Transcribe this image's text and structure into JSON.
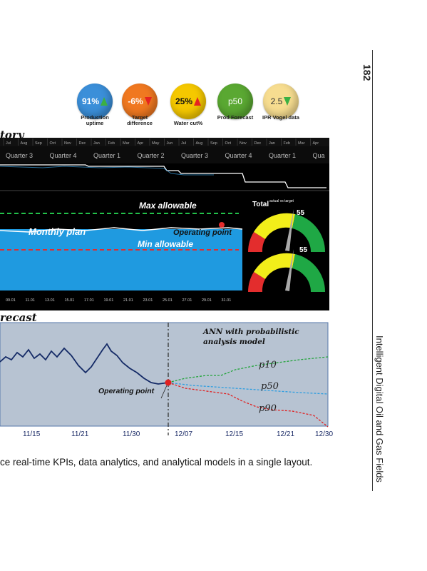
{
  "kpis": [
    {
      "value": "91%",
      "label": "Production uptime",
      "color": "#3b8fd9",
      "arrow": "up-g"
    },
    {
      "value": "-6%",
      "label": "Target difference",
      "color": "#f07820",
      "arrow": "down-r"
    },
    {
      "value": "25%",
      "label": "Water cut%",
      "color": "#f5c800",
      "arrow": "up-r"
    },
    {
      "value": "p50",
      "label": "Prod Forecast",
      "color": "#5aa832",
      "arrow": ""
    },
    {
      "value": "2.5",
      "label": "IPR Vogel data",
      "color": "#f7dd90",
      "arrow": "down-g"
    }
  ],
  "history_title": "tory",
  "forecast_title": "recast",
  "timeline": {
    "months": [
      "Jul",
      "Aug",
      "Sep",
      "Oct",
      "Nov",
      "Dec",
      "Jan",
      "Feb",
      "Mar",
      "Apr",
      "May",
      "Jun",
      "Jul",
      "Aug",
      "Sep",
      "Oct",
      "Nov",
      "Dec",
      "Jan",
      "Feb",
      "Mar",
      "Apr"
    ],
    "quarters": [
      "Quarter 3",
      "Quarter 4",
      "Quarter 1",
      "Quarter 2",
      "Quarter 3",
      "Quarter 4",
      "Quarter 1",
      "Qua"
    ]
  },
  "production_panel": {
    "max_label": "Max allowable",
    "plan_label": "Monthly plan",
    "operating_label": "Operating point",
    "min_label": "Min allowable",
    "days": [
      "09.01",
      "11.01",
      "13.01",
      "15.01",
      "17.01",
      "19.01",
      "21.01",
      "23.01",
      "25.01",
      "27.01",
      "29.01",
      "31.01"
    ]
  },
  "gauges": {
    "title": "Total",
    "subtitle": "actual vs target",
    "values": [
      "55",
      "55"
    ]
  },
  "forecast_chart": {
    "annotation_line1": "ANN with probabilistic",
    "annotation_line2": "analysis model",
    "operating_label": "Operating point",
    "series_labels": [
      "p10",
      "p50",
      "p90"
    ],
    "x_ticks": [
      "11/15",
      "11/21",
      "11/30",
      "12/07",
      "12/15",
      "12/21",
      "12/30"
    ]
  },
  "caption": "ce real-time KPIs, data analytics, and analytical models in a single layout.",
  "page_number": "182",
  "book_title": "Intelligent Digital Oil and Gas Fields"
}
